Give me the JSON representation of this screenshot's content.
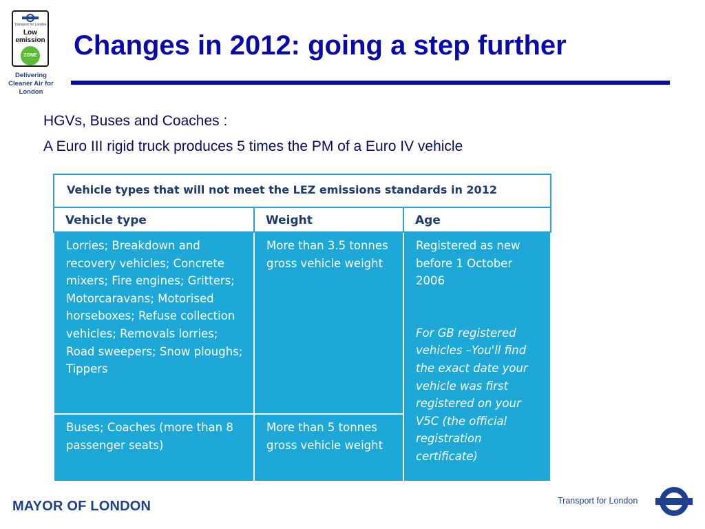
{
  "badge": {
    "tfl_text": "Transport for London",
    "low_emission": "Low emission",
    "zone": "ZONE",
    "tagline": "Delivering Cleaner Air for London"
  },
  "slide": {
    "title": "Changes in 2012: going a step further",
    "line1": "HGVs, Buses and Coaches :",
    "line2": "A Euro III rigid truck produces 5 times the PM of a Euro IV vehicle"
  },
  "table": {
    "caption": "Vehicle types that will not meet the LEZ emissions standards in 2012",
    "headers": [
      "Vehicle type",
      "Weight",
      "Age"
    ],
    "rows": [
      {
        "type": "Lorries; Breakdown and recovery vehicles; Concrete mixers; Fire engines; Gritters; Motorcaravans; Motorised horseboxes; Refuse collection vehicles; Removals lorries; Road sweepers; Snow ploughs; Tippers",
        "weight": "More than 3.5 tonnes gross vehicle weight",
        "age": "Registered as new before 1 October 2006",
        "age_note": "For GB registered vehicles –You'll find the exact date your vehicle was first registered on your V5C (the official registration certificate)"
      },
      {
        "type": "Buses; Coaches (more than 8 passenger seats)",
        "weight": "More than 5 tonnes gross vehicle weight"
      }
    ]
  },
  "footer": {
    "mayor": "MAYOR OF LONDON",
    "tfl": "Transport for London"
  },
  "colors": {
    "title_blue": "#0a0aa8",
    "table_cyan": "#1ea8d8",
    "tfl_blue": "#1f3f8f",
    "lez_green": "#5dbb3a"
  }
}
